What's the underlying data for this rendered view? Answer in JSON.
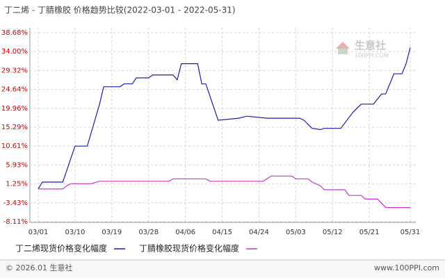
{
  "chart_data": {
    "type": "line",
    "title": "丁二烯 - 丁腈橡胶 价格趋势比较(2022-03-01 - 2022-05-31)",
    "xlim": [
      "03/01",
      "05/31"
    ],
    "xticks": [
      "03/01",
      "03/10",
      "03/19",
      "03/28",
      "04/06",
      "04/15",
      "04/24",
      "05/03",
      "05/12",
      "05/21",
      "05/31"
    ],
    "ylim": [
      -8.11,
      38.68
    ],
    "yticks": [
      {
        "value": 38.68,
        "label": "38.68%"
      },
      {
        "value": 34.0,
        "label": "34.00%"
      },
      {
        "value": 29.32,
        "label": "29.32%"
      },
      {
        "value": 24.64,
        "label": "24.64%"
      },
      {
        "value": 19.96,
        "label": "19.96%"
      },
      {
        "value": 15.29,
        "label": "15.29%"
      },
      {
        "value": 10.61,
        "label": "10.61%"
      },
      {
        "value": 5.93,
        "label": "5.93%"
      },
      {
        "value": 1.25,
        "label": "1.25%"
      },
      {
        "value": -3.43,
        "label": "-3.43%"
      },
      {
        "value": -8.11,
        "label": "-8.11%"
      }
    ],
    "grid": true,
    "series": [
      {
        "name": "丁二烯现货价格变化幅度",
        "color": "#1c1ca8",
        "x": [
          "03/01",
          "03/02",
          "03/07",
          "03/10",
          "03/13",
          "03/16",
          "03/17",
          "03/21",
          "03/22",
          "03/24",
          "03/25",
          "03/28",
          "03/29",
          "04/03",
          "04/04",
          "04/05",
          "04/09",
          "04/10",
          "04/11",
          "04/14",
          "04/19",
          "04/21",
          "04/26",
          "05/04",
          "05/05",
          "05/07",
          "05/09",
          "05/10",
          "05/14",
          "05/17",
          "05/19",
          "05/22",
          "05/24",
          "05/25",
          "05/27",
          "05/29",
          "05/30",
          "05/31"
        ],
        "values": [
          0,
          1.7,
          1.7,
          10.6,
          10.6,
          21,
          25.3,
          25.3,
          26,
          26,
          27.5,
          27.5,
          28.2,
          28.2,
          27,
          31,
          31,
          26,
          26,
          17,
          17.5,
          18,
          17.5,
          17.5,
          17,
          15,
          14.7,
          15,
          15,
          19,
          21,
          21,
          23.5,
          23.5,
          28.5,
          28.5,
          31,
          35
        ]
      },
      {
        "name": "丁腈橡胶现货价格变化幅度",
        "color": "#cc33cc",
        "x": [
          "03/01",
          "03/07",
          "03/08",
          "03/09",
          "03/14",
          "03/16",
          "04/02",
          "04/03",
          "04/11",
          "04/12",
          "04/25",
          "04/27",
          "05/02",
          "05/03",
          "05/06",
          "05/07",
          "05/09",
          "05/10",
          "05/15",
          "05/16",
          "05/19",
          "05/20",
          "05/23",
          "05/25",
          "05/31"
        ],
        "values": [
          0,
          0,
          0.8,
          1.3,
          1.3,
          1.9,
          1.9,
          2.5,
          2.5,
          1.9,
          1.9,
          3.2,
          3.2,
          2.5,
          2.5,
          1.7,
          0.8,
          -0.2,
          -0.2,
          -1.6,
          -1.6,
          -2.5,
          -2.5,
          -4.6,
          -4.6
        ]
      }
    ],
    "watermark": {
      "name": "生意社",
      "site": "100PPI.COM"
    },
    "footer": {
      "left": "© 2026.01 生意社",
      "right": "www.100PPI.com"
    }
  }
}
